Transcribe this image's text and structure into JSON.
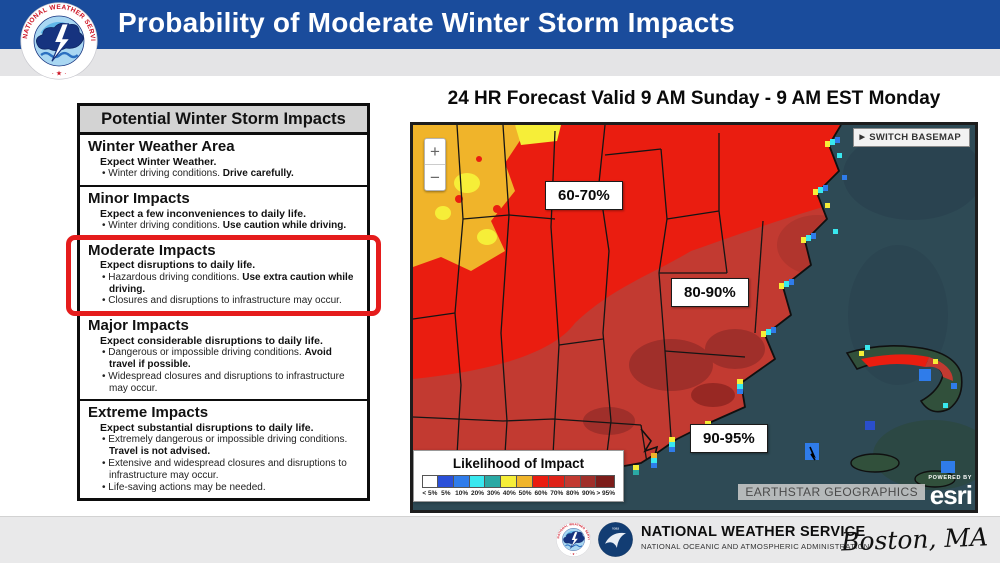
{
  "header": {
    "title": "Probability of Moderate Winter Storm Impacts"
  },
  "impacts": {
    "title": "Potential Winter Storm Impacts",
    "sections": [
      {
        "heading": "Winter Weather Area",
        "summary": "Expect Winter Weather.",
        "highlighted": false,
        "bullets": [
          [
            {
              "t": "Winter driving conditions. "
            },
            {
              "t": "Drive carefully.",
              "b": true
            }
          ]
        ]
      },
      {
        "heading": "Minor Impacts",
        "summary": "Expect a few inconveniences to daily life.",
        "highlighted": false,
        "bullets": [
          [
            {
              "t": "Winter driving conditions. "
            },
            {
              "t": "Use caution while driving.",
              "b": true
            }
          ]
        ]
      },
      {
        "heading": "Moderate Impacts",
        "summary": "Expect disruptions to daily life.",
        "highlighted": true,
        "bullets": [
          [
            {
              "t": "Hazardous driving conditions. "
            },
            {
              "t": "Use extra caution while driving.",
              "b": true
            }
          ],
          [
            {
              "t": "Closures and disruptions to infrastructure may occur."
            }
          ]
        ]
      },
      {
        "heading": "Major Impacts",
        "summary": "Expect considerable disruptions to daily life.",
        "highlighted": false,
        "bullets": [
          [
            {
              "t": "Dangerous or impossible driving conditions. "
            },
            {
              "t": "Avoid travel if possible.",
              "b": true
            }
          ],
          [
            {
              "t": "Widespread closures and disruptions to infrastructure may occur."
            }
          ]
        ]
      },
      {
        "heading": "Extreme Impacts",
        "summary": "Expect substantial disruptions to daily life.",
        "highlighted": false,
        "bullets": [
          [
            {
              "t": "Extremely dangerous or impossible driving conditions. "
            },
            {
              "t": "Travel is not advised.",
              "b": true
            }
          ],
          [
            {
              "t": "Extensive and widespread closures and disruptions to infrastructure may occur."
            }
          ],
          [
            {
              "t": "Life-saving actions may be needed."
            }
          ]
        ]
      }
    ]
  },
  "map": {
    "title": "24 HR Forecast Valid 9 AM Sunday - 9 AM EST Monday",
    "switch_basemap_label": "SWITCH BASEMAP",
    "zoom_in_label": "+",
    "zoom_out_label": "−",
    "region_labels": [
      "60-70%",
      "80-90%",
      "90-95%"
    ],
    "legend": {
      "title": "Likelihood of Impact",
      "entries": [
        {
          "label": "< 5%",
          "color": "#ffffff"
        },
        {
          "label": "5%",
          "color": "#2a4fd8"
        },
        {
          "label": "10%",
          "color": "#2f7cea"
        },
        {
          "label": "20%",
          "color": "#39e8ef"
        },
        {
          "label": "30%",
          "color": "#2aa9a4"
        },
        {
          "label": "40%",
          "color": "#f6ee38"
        },
        {
          "label": "50%",
          "color": "#f0b42a"
        },
        {
          "label": "60%",
          "color": "#ea1d10"
        },
        {
          "label": "70%",
          "color": "#de2218"
        },
        {
          "label": "80%",
          "color": "#c23a31"
        },
        {
          "label": "90%",
          "color": "#a02f2a"
        },
        {
          "label": "> 95%",
          "color": "#7c1d1a"
        }
      ]
    },
    "attribution": "EARTHSTAR GEOGRAPHICS",
    "powered_by_label": "POWERED BY",
    "esri_label": "esri",
    "palette": {
      "ocean": "#2e4a55",
      "ocean_deep": "#2a4350",
      "ocean_green": "#2c473d",
      "land_green": "#31503b",
      "blue5": "#2a4fd8",
      "blue10": "#2f7cea",
      "cyan20": "#39e8ef",
      "teal30": "#2aa9a4",
      "yellow40": "#f6ee38",
      "gold50": "#f0b42a",
      "red60": "#ea1d10",
      "red80": "#c23a31",
      "red90": "#a02f2a",
      "red95": "#7c1d1a"
    }
  },
  "footer": {
    "org": "NATIONAL WEATHER SERVICE",
    "suborg": "NATIONAL OCEANIC AND ATMOSPHERIC ADMINISTRATION",
    "location": "Boston, MA"
  }
}
